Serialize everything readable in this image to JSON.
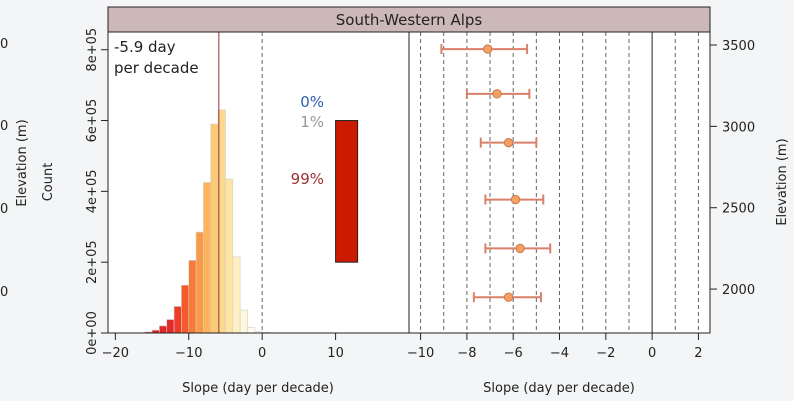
{
  "strip_title": "South-Western Alps",
  "left_edge_labels": [
    "0",
    "0",
    "0",
    "0"
  ],
  "chart_data": [
    {
      "type": "bar",
      "name": "histogram",
      "xlabel": "Slope (day per decade)",
      "ylabel": "Count",
      "xlim": [
        -21,
        20
      ],
      "ylim": [
        0,
        850000
      ],
      "x_ticks": [
        -20,
        -10,
        0,
        10
      ],
      "y_ticks": [
        "0e+00",
        "2e+05",
        "4e+05",
        "6e+05",
        "8e+05"
      ],
      "y_tick_values": [
        0,
        200000,
        400000,
        600000,
        800000
      ],
      "bin_width": 1,
      "bins": [
        {
          "x": -16,
          "count": 3000,
          "color": "#d01f1f"
        },
        {
          "x": -15,
          "count": 8000,
          "color": "#d82020"
        },
        {
          "x": -14,
          "count": 20000,
          "color": "#e12626"
        },
        {
          "x": -13,
          "count": 38000,
          "color": "#e42b2b"
        },
        {
          "x": -12,
          "count": 75000,
          "color": "#ee3b28"
        },
        {
          "x": -11,
          "count": 135000,
          "color": "#f55b2a"
        },
        {
          "x": -10,
          "count": 205000,
          "color": "#f87a36"
        },
        {
          "x": -9,
          "count": 285000,
          "color": "#fa9a46"
        },
        {
          "x": -8,
          "count": 425000,
          "color": "#fbb45a"
        },
        {
          "x": -7,
          "count": 590000,
          "color": "#fcca72"
        },
        {
          "x": -6,
          "count": 630000,
          "color": "#fdd98b"
        },
        {
          "x": -5,
          "count": 435000,
          "color": "#fee5a4"
        },
        {
          "x": -4,
          "count": 215000,
          "color": "#fff0c4"
        },
        {
          "x": -3,
          "count": 65000,
          "color": "#fff7dc"
        },
        {
          "x": -2,
          "count": 15000,
          "color": "#fffbee"
        },
        {
          "x": -1,
          "count": 5000,
          "color": "#fffdf6"
        },
        {
          "x": 0,
          "count": 2000,
          "color": "#fffefa"
        }
      ],
      "median_slope": -5.9,
      "median_color": "#a03030",
      "annotation": [
        "-5.9 day",
        "per decade"
      ],
      "zero_line": 0,
      "inset_bar": {
        "from": 200000,
        "to": 600000,
        "x_from": 10,
        "x_to": 13,
        "color": "#cc1a00"
      },
      "percent_labels": [
        {
          "text": "0%",
          "color": "#3060b0"
        },
        {
          "text": "1%",
          "color": "#999999"
        },
        {
          "text": "99%",
          "color": "#a03030"
        }
      ]
    },
    {
      "type": "scatter",
      "name": "elevation-slope",
      "xlabel": "Slope (day per decade)",
      "ylabel": "Elevation (m)",
      "xlim": [
        -10.5,
        2.5
      ],
      "ylim": [
        1730,
        3580
      ],
      "x_ticks": [
        -10,
        -8,
        -6,
        -4,
        -2,
        0,
        2
      ],
      "y_ticks": [
        2000,
        2500,
        3000,
        3500
      ],
      "dashed_x": [
        -10,
        -9,
        -8,
        -7,
        -6,
        -5,
        -4,
        -3,
        -2,
        -1,
        1,
        2
      ],
      "zero_line": 0,
      "point_color": "#f5a060",
      "errorbar_color": "#d9806a",
      "points": [
        {
          "elevation": 3475,
          "slope": -7.1,
          "lo": -9.1,
          "hi": -5.4
        },
        {
          "elevation": 3200,
          "slope": -6.7,
          "lo": -8.0,
          "hi": -5.3
        },
        {
          "elevation": 2900,
          "slope": -6.2,
          "lo": -7.4,
          "hi": -5.0
        },
        {
          "elevation": 2550,
          "slope": -5.9,
          "lo": -7.2,
          "hi": -4.7
        },
        {
          "elevation": 2250,
          "slope": -5.7,
          "lo": -7.2,
          "hi": -4.4
        },
        {
          "elevation": 1950,
          "slope": -6.2,
          "lo": -7.7,
          "hi": -4.8
        }
      ]
    }
  ]
}
